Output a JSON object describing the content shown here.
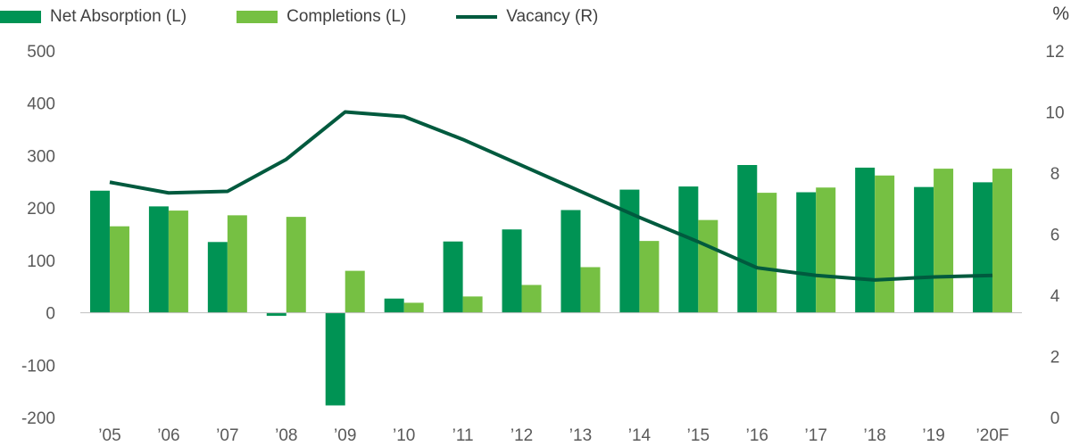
{
  "legend": {
    "net_absorption": "Net Absorption (L)",
    "completions": "Completions (L)",
    "vacancy": "Vacancy (R)"
  },
  "right_axis_unit": "%",
  "colors": {
    "net_absorption": "#009354",
    "completions": "#76c043",
    "vacancy": "#005a3e",
    "axis_text": "#595959"
  },
  "chart_data": {
    "type": "bar",
    "categories": [
      "’05",
      "’06",
      "’07",
      "’08",
      "’09",
      "’10",
      "’11",
      "’12",
      "’13",
      "’14",
      "’15",
      "’16",
      "’17",
      "’18",
      "’19",
      "’20F"
    ],
    "series": [
      {
        "name": "Net Absorption (L)",
        "type": "bar",
        "axis": "left",
        "values": [
          233,
          203,
          135,
          -6,
          -177,
          27,
          136,
          159,
          196,
          235,
          241,
          282,
          230,
          277,
          240,
          249
        ]
      },
      {
        "name": "Completions (L)",
        "type": "bar",
        "axis": "left",
        "values": [
          165,
          195,
          186,
          183,
          80,
          19,
          31,
          53,
          87,
          137,
          177,
          229,
          239,
          262,
          275,
          275
        ]
      },
      {
        "name": "Vacancy (R)",
        "type": "line",
        "axis": "right",
        "values": [
          7.7,
          7.35,
          7.4,
          8.45,
          10.0,
          9.85,
          9.1,
          8.25,
          7.4,
          6.55,
          5.75,
          4.9,
          4.65,
          4.5,
          4.6,
          4.65
        ]
      }
    ],
    "left_axis": {
      "min": -200,
      "max": 500,
      "ticks": [
        500,
        400,
        300,
        200,
        100,
        0,
        -100,
        -200
      ]
    },
    "right_axis": {
      "min": 0,
      "max": 12,
      "ticks": [
        12,
        10,
        8,
        6,
        4,
        2,
        0
      ]
    },
    "grid": false,
    "legend_position": "top-left"
  }
}
